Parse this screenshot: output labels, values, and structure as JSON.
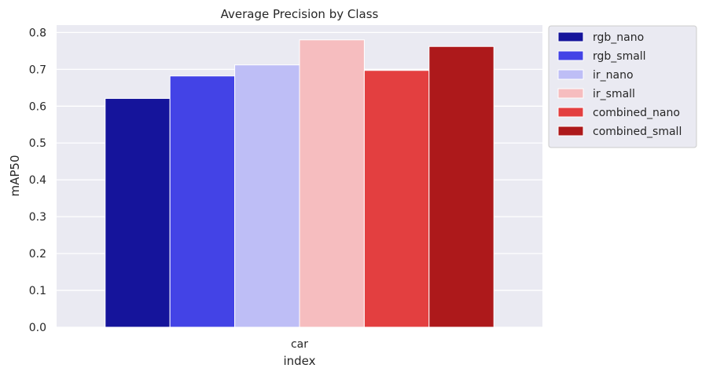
{
  "chart_data": {
    "type": "bar",
    "title": "Average Precision by Class",
    "xlabel": "index",
    "ylabel": "mAP50",
    "categories": [
      "car"
    ],
    "ylim": [
      0,
      0.82
    ],
    "yticks": [
      0.0,
      0.1,
      0.2,
      0.3,
      0.4,
      0.5,
      0.6,
      0.7,
      0.8
    ],
    "ytick_labels": [
      "0.0",
      "0.1",
      "0.2",
      "0.3",
      "0.4",
      "0.5",
      "0.6",
      "0.7",
      "0.8"
    ],
    "grid": true,
    "legend_position": "outside-top-right",
    "series": [
      {
        "name": "rgb_nano",
        "color": "#15149b",
        "values": [
          0.621
        ]
      },
      {
        "name": "rgb_small",
        "color": "#4343e6",
        "values": [
          0.682
        ]
      },
      {
        "name": "ir_nano",
        "color": "#bebef6",
        "values": [
          0.712
        ]
      },
      {
        "name": "ir_small",
        "color": "#f6bdbf",
        "values": [
          0.78
        ]
      },
      {
        "name": "combined_nano",
        "color": "#e33f40",
        "values": [
          0.697
        ]
      },
      {
        "name": "combined_small",
        "color": "#ad191b",
        "values": [
          0.762
        ]
      }
    ]
  }
}
